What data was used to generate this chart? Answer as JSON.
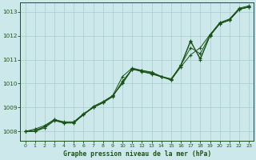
{
  "title": "Graphe pression niveau de la mer (hPa)",
  "background_color": "#cce8ea",
  "grid_color": "#a8cccc",
  "line_color": "#1a5218",
  "xlim": [
    -0.5,
    23.5
  ],
  "ylim": [
    1007.6,
    1013.4
  ],
  "yticks": [
    1008,
    1009,
    1010,
    1011,
    1012,
    1013
  ],
  "xticks": [
    0,
    1,
    2,
    3,
    4,
    5,
    6,
    7,
    8,
    9,
    10,
    11,
    12,
    13,
    14,
    15,
    16,
    17,
    18,
    19,
    20,
    21,
    22,
    23
  ],
  "series1": [
    1008.0,
    1008.0,
    1008.2,
    1008.5,
    1008.4,
    1008.4,
    1008.7,
    1009.05,
    1009.25,
    1009.5,
    1010.3,
    1010.65,
    1010.55,
    1010.45,
    1010.3,
    1010.2,
    1010.75,
    1011.75,
    1011.05,
    1012.0,
    1012.5,
    1012.65,
    1013.1,
    1013.2
  ],
  "series2": [
    1008.0,
    1008.0,
    1008.15,
    1008.45,
    1008.35,
    1008.35,
    1008.7,
    1009.0,
    1009.2,
    1009.45,
    1010.1,
    1010.6,
    1010.5,
    1010.4,
    1010.28,
    1010.15,
    1010.7,
    1011.2,
    1011.5,
    1012.05,
    1012.55,
    1012.7,
    1013.15,
    1013.25
  ],
  "series3": [
    1008.0,
    1008.1,
    1008.25,
    1008.5,
    1008.35,
    1008.4,
    1008.75,
    1009.0,
    1009.2,
    1009.5,
    1010.0,
    1010.6,
    1010.55,
    1010.48,
    1010.3,
    1010.15,
    1010.78,
    1011.8,
    1011.0,
    1012.0,
    1012.5,
    1012.65,
    1013.1,
    1013.2
  ],
  "series4": [
    1008.0,
    1008.05,
    1008.2,
    1008.48,
    1008.38,
    1008.38,
    1008.72,
    1009.02,
    1009.22,
    1009.48,
    1010.05,
    1010.62,
    1010.52,
    1010.42,
    1010.29,
    1010.17,
    1010.77,
    1011.5,
    1011.25,
    1012.02,
    1012.52,
    1012.67,
    1013.12,
    1013.22
  ]
}
